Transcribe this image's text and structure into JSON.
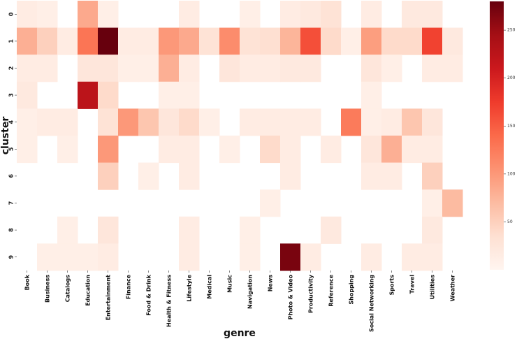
{
  "chart_data": {
    "type": "heatmap",
    "xlabel": "genre",
    "ylabel": "cluster",
    "x_categories": [
      "Book",
      "Business",
      "Catalogs",
      "Education",
      "Entertainment",
      "Finance",
      "Food & Drink",
      "Health & Fitness",
      "Lifestyle",
      "Medical",
      "Music",
      "Navigation",
      "News",
      "Photo & Video",
      "Productivity",
      "Reference",
      "Shopping",
      "Social Networking",
      "Sports",
      "Travel",
      "Utilities",
      "Weather"
    ],
    "y_categories": [
      "0",
      "1",
      "2",
      "3",
      "4",
      "5",
      "6",
      "7",
      "8",
      "9"
    ],
    "values": [
      [
        15,
        10,
        0,
        85,
        10,
        0,
        0,
        0,
        15,
        0,
        0,
        10,
        0,
        15,
        20,
        30,
        0,
        15,
        0,
        20,
        20,
        0
      ],
      [
        80,
        50,
        15,
        130,
        280,
        15,
        15,
        100,
        85,
        30,
        110,
        30,
        35,
        75,
        160,
        40,
        10,
        95,
        40,
        40,
        170,
        20
      ],
      [
        15,
        15,
        0,
        25,
        25,
        10,
        10,
        80,
        15,
        0,
        25,
        15,
        15,
        20,
        20,
        0,
        0,
        25,
        10,
        0,
        15,
        15
      ],
      [
        20,
        0,
        0,
        225,
        40,
        0,
        0,
        10,
        10,
        0,
        0,
        0,
        0,
        0,
        0,
        0,
        0,
        10,
        0,
        0,
        0,
        0
      ],
      [
        10,
        15,
        15,
        0,
        30,
        100,
        60,
        25,
        40,
        10,
        0,
        15,
        15,
        15,
        15,
        0,
        125,
        10,
        15,
        60,
        25,
        0
      ],
      [
        10,
        0,
        10,
        0,
        100,
        0,
        0,
        15,
        15,
        0,
        10,
        0,
        40,
        15,
        0,
        15,
        0,
        25,
        80,
        15,
        15,
        0
      ],
      [
        0,
        0,
        0,
        0,
        50,
        0,
        10,
        0,
        15,
        0,
        0,
        0,
        0,
        15,
        0,
        0,
        0,
        15,
        15,
        0,
        50,
        0
      ],
      [
        0,
        0,
        0,
        0,
        0,
        0,
        0,
        0,
        0,
        0,
        0,
        0,
        10,
        0,
        0,
        0,
        0,
        0,
        0,
        0,
        10,
        70
      ],
      [
        0,
        0,
        10,
        0,
        25,
        0,
        0,
        0,
        15,
        0,
        0,
        10,
        0,
        0,
        0,
        20,
        0,
        0,
        0,
        0,
        20,
        0
      ],
      [
        0,
        10,
        10,
        10,
        15,
        0,
        0,
        0,
        15,
        0,
        0,
        10,
        0,
        270,
        15,
        0,
        0,
        15,
        0,
        15,
        15,
        0
      ]
    ],
    "vmin": 0,
    "vmax": 280,
    "colorbar_ticks": [
      50,
      100,
      150,
      200,
      250
    ],
    "colormap": [
      "#fff5f0",
      "#fee0d2",
      "#fcbba1",
      "#fc9272",
      "#fb6a4a",
      "#ef3b2c",
      "#cb181d",
      "#a50f15",
      "#67000d"
    ],
    "grid": false
  }
}
